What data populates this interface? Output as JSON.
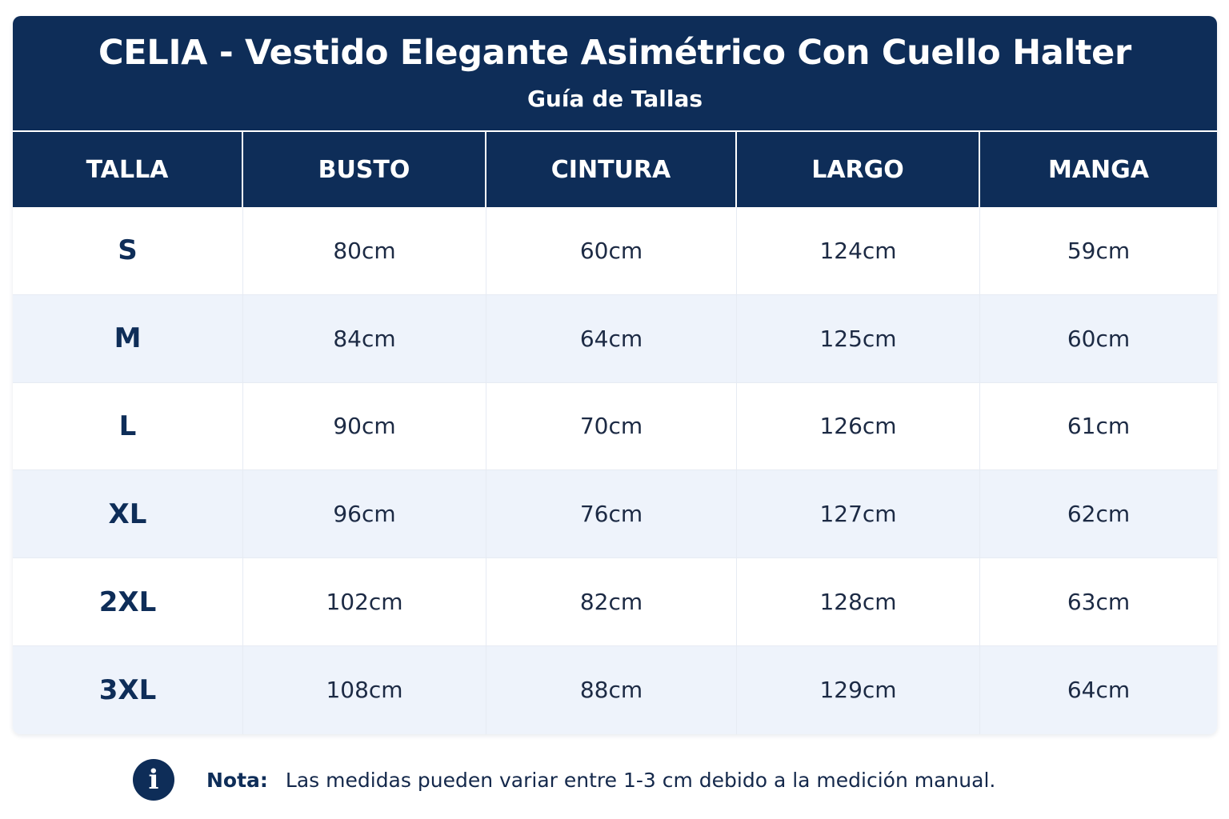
{
  "title": "CELIA - Vestido Elegante Asimétrico Con Cuello Halter",
  "subtitle": "Guía de Tallas",
  "table": {
    "headers": [
      "TALLA",
      "BUSTO",
      "CINTURA",
      "LARGO",
      "MANGA"
    ],
    "rows": [
      [
        "S",
        "80cm",
        "60cm",
        "124cm",
        "59cm"
      ],
      [
        "M",
        "84cm",
        "64cm",
        "125cm",
        "60cm"
      ],
      [
        "L",
        "90cm",
        "70cm",
        "126cm",
        "61cm"
      ],
      [
        "XL",
        "96cm",
        "76cm",
        "127cm",
        "62cm"
      ],
      [
        "2XL",
        "102cm",
        "82cm",
        "128cm",
        "63cm"
      ],
      [
        "3XL",
        "108cm",
        "88cm",
        "129cm",
        "64cm"
      ]
    ]
  },
  "note": {
    "icon": "info-icon",
    "icon_glyph": "i",
    "label": "Nota:",
    "text": "Las medidas pueden variar entre 1-3 cm debido a la medición manual."
  },
  "colors": {
    "header_bg": "#0e2d58",
    "alt_row_bg": "#eef3fb",
    "text_dark": "#1c2a44"
  }
}
